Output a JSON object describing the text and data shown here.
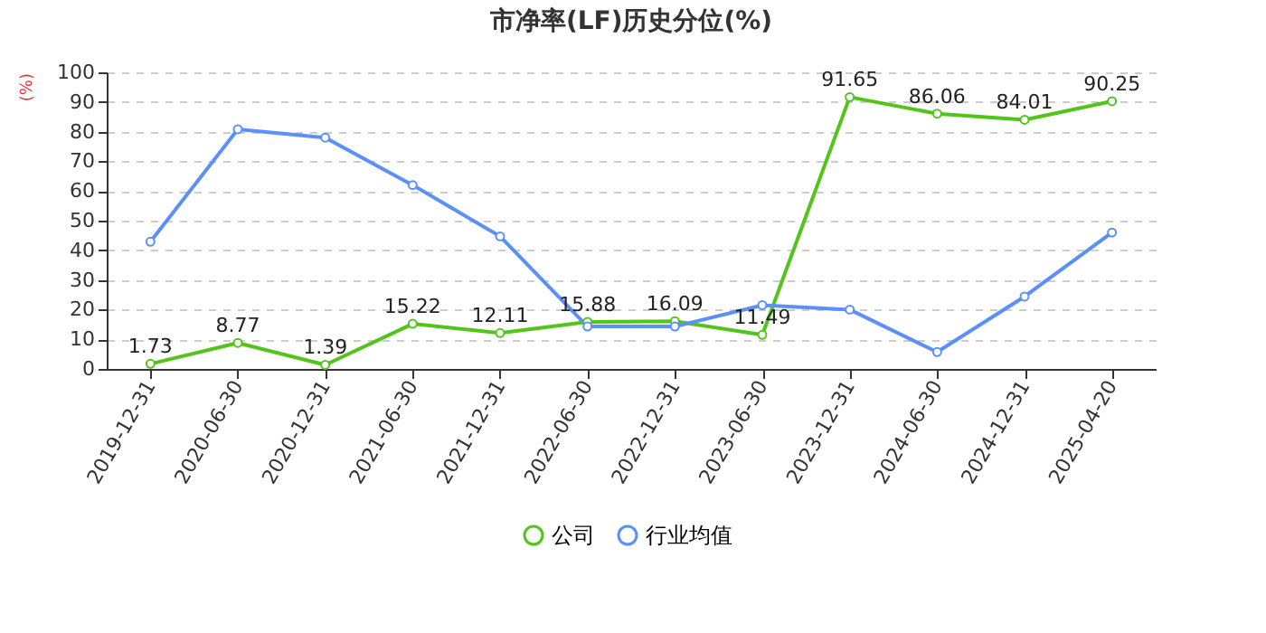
{
  "chart_data": {
    "type": "line",
    "title": "市净率(LF)历史分位(%)",
    "ylabel": "(%)",
    "categories": [
      "2019-12-31",
      "2020-06-30",
      "2020-12-31",
      "2021-06-30",
      "2021-12-31",
      "2022-06-30",
      "2022-12-31",
      "2023-06-30",
      "2023-12-31",
      "2024-06-30",
      "2024-12-31",
      "2025-04-20"
    ],
    "series": [
      {
        "name": "公司",
        "color": "#52c41a",
        "values": [
          1.73,
          8.77,
          1.39,
          15.22,
          12.11,
          15.88,
          16.09,
          11.49,
          91.65,
          86.06,
          84.01,
          90.25
        ],
        "value_labels": [
          "1.73",
          "8.77",
          "1.39",
          "15.22",
          "12.11",
          "15.88",
          "16.09",
          "11.49",
          "91.65",
          "86.06",
          "84.01",
          "90.25"
        ]
      },
      {
        "name": "行业均值",
        "color": "#5b8ff9",
        "values": [
          42.9,
          80.8,
          78,
          62,
          44.7,
          14.3,
          14.3,
          21.5,
          20,
          5.7,
          24.4,
          46
        ]
      }
    ],
    "ylim": [
      0,
      100
    ],
    "yticks": [
      0,
      10,
      20,
      30,
      40,
      50,
      60,
      70,
      80,
      90,
      100
    ],
    "grid": "y",
    "legend": "bottom",
    "marker": "circle",
    "line_style": "solid"
  }
}
